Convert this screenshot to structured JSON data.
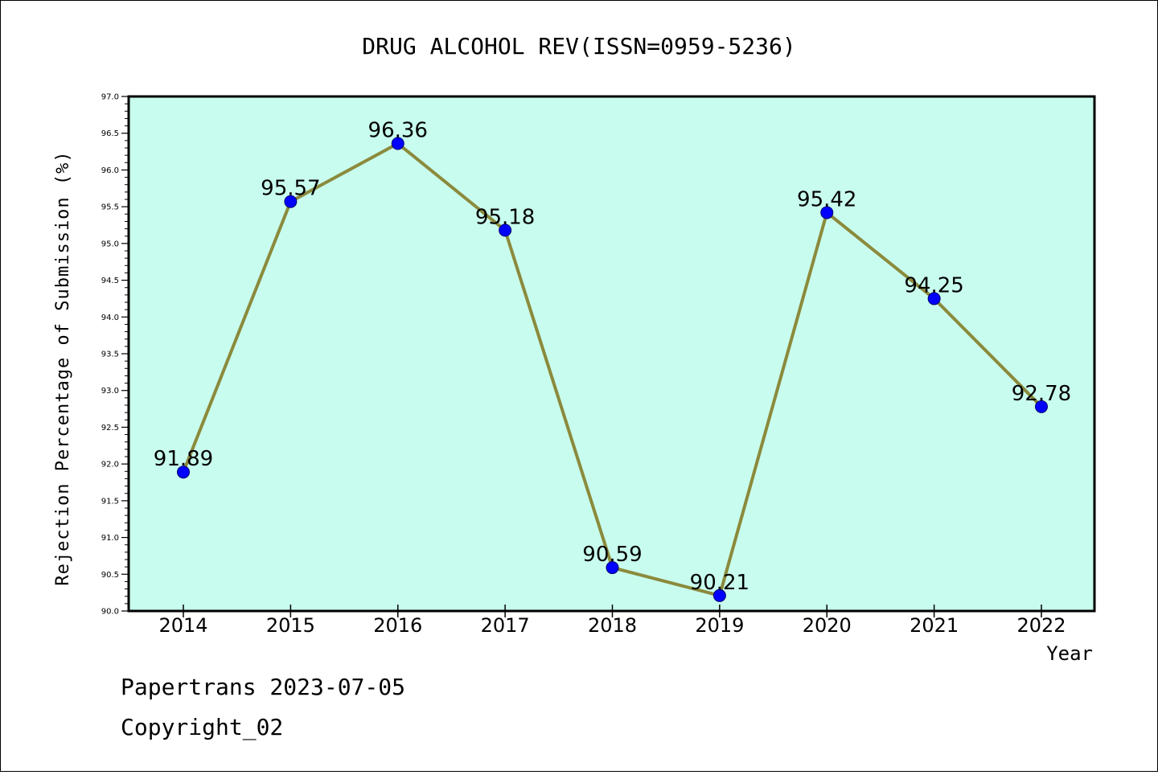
{
  "chart_data": {
    "type": "line",
    "title": "DRUG ALCOHOL REV(ISSN=0959-5236)",
    "xlabel": "Year",
    "ylabel": "Rejection Percentage of Submission (%)",
    "categories": [
      "2014",
      "2015",
      "2016",
      "2017",
      "2018",
      "2019",
      "2020",
      "2021",
      "2022"
    ],
    "values": [
      91.89,
      95.57,
      96.36,
      95.18,
      90.59,
      90.21,
      95.42,
      94.25,
      92.78
    ],
    "data_labels": [
      "91.89",
      "95.57",
      "96.36",
      "95.18",
      "90.59",
      "90.21",
      "95.42",
      "94.25",
      "92.78"
    ],
    "ylim": [
      90.0,
      97.0
    ],
    "yticks": [
      "90.0",
      "90.5",
      "91.0",
      "91.5",
      "92.0",
      "92.5",
      "93.0",
      "93.5",
      "94.0",
      "94.5",
      "95.0",
      "95.5",
      "96.0",
      "96.5",
      "97.0"
    ],
    "grid": false,
    "colors": {
      "plot_background": "#c8fcee",
      "line": "#8b8a3c",
      "marker": "#0000ff"
    }
  },
  "footer": {
    "line1": "Papertrans 2023-07-05",
    "line2": "Copyright_02"
  }
}
